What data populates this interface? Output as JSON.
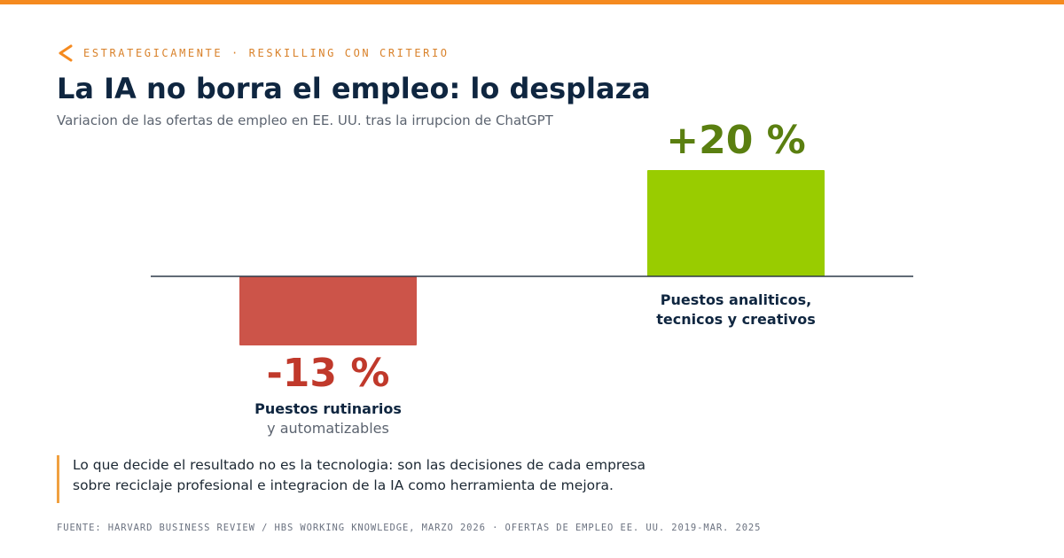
{
  "header": {
    "kicker_icon": "chevron-left-icon",
    "kicker": "ESTRATEGICAMENTE · RESKILLING CON CRITERIO",
    "title": "La IA no borra el empleo: lo desplaza",
    "subtitle": "Variacion de las ofertas de empleo en EE. UU. tras la irrupcion de ChatGPT"
  },
  "colors": {
    "accent": "#f58a1f",
    "negative": "#cc5449",
    "negative_text": "#c0392b",
    "positive": "#99cc00",
    "positive_text": "#5a7f10",
    "axis": "#2d3a48",
    "text_dark": "#0f2640"
  },
  "chart_data": {
    "type": "bar",
    "categories": [
      "Puestos rutinarios y automatizables",
      "Puestos analiticos, tecnicos y creativos"
    ],
    "values": [
      -13,
      20
    ],
    "value_labels": [
      "-13 %",
      "+20 %"
    ],
    "category_labels": [
      {
        "lines": [
          "Puestos rutinarios"
        ],
        "sublines": [
          "y automatizables"
        ]
      },
      {
        "lines": [
          "Puestos analiticos,",
          "tecnicos y creativos"
        ],
        "sublines": []
      }
    ],
    "unit": "%",
    "grid": false,
    "legend": "none"
  },
  "callout": {
    "lines": [
      "Lo que decide el resultado no es la tecnologia: son las decisiones de cada empresa",
      "sobre reciclaje profesional e integracion de la IA como herramienta de mejora."
    ]
  },
  "footer": {
    "source": "FUENTE: HARVARD BUSINESS REVIEW / HBS WORKING KNOWLEDGE, MARZO 2026 · OFERTAS DE EMPLEO EE. UU. 2019-MAR. 2025"
  }
}
